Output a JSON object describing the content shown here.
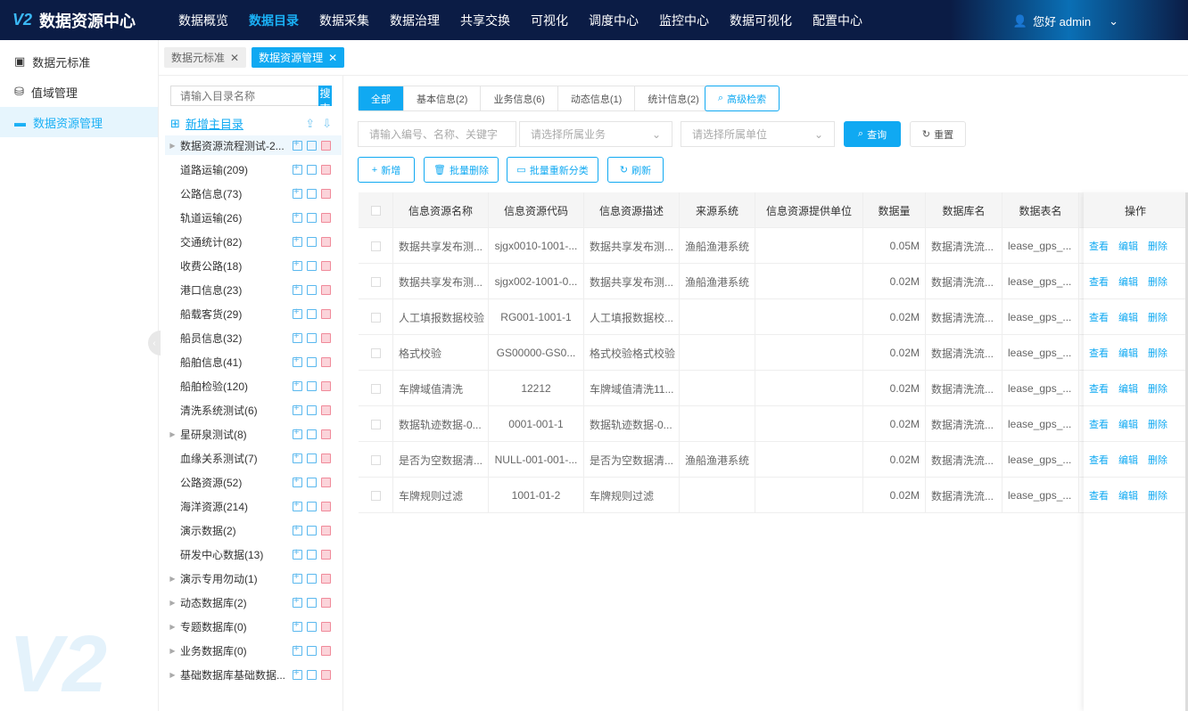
{
  "header": {
    "logo_mark": "V2",
    "title": "数据资源中心",
    "nav": [
      "数据概览",
      "数据目录",
      "数据采集",
      "数据治理",
      "共享交换",
      "可视化",
      "调度中心",
      "监控中心",
      "数据可视化",
      "配置中心"
    ],
    "active_nav": "数据目录",
    "user": "您好 admin"
  },
  "sidebar": {
    "items": [
      "数据元标准",
      "值域管理",
      "数据资源管理"
    ],
    "active": "数据资源管理"
  },
  "tabs": [
    {
      "label": "数据元标准"
    },
    {
      "label": "数据资源管理",
      "active": true
    }
  ],
  "tree": {
    "search_placeholder": "请输入目录名称",
    "search_button": "搜索",
    "add_root": "新增主目录",
    "items": [
      {
        "label": "数据资源流程测试-2...",
        "expand": true
      },
      {
        "label": "道路运输(209)"
      },
      {
        "label": "公路信息(73)"
      },
      {
        "label": "轨道运输(26)"
      },
      {
        "label": "交通统计(82)"
      },
      {
        "label": "收费公路(18)"
      },
      {
        "label": "港口信息(23)"
      },
      {
        "label": "船载客货(29)"
      },
      {
        "label": "船员信息(32)"
      },
      {
        "label": "船舶信息(41)"
      },
      {
        "label": "船舶检验(120)"
      },
      {
        "label": "清洗系统测试(6)"
      },
      {
        "label": "星研泉测试(8)",
        "expand": true
      },
      {
        "label": "血缘关系测试(7)"
      },
      {
        "label": "公路资源(52)"
      },
      {
        "label": "海洋资源(214)"
      },
      {
        "label": "演示数据(2)"
      },
      {
        "label": "研发中心数据(13)"
      },
      {
        "label": "演示专用勿动(1)",
        "expand": true
      },
      {
        "label": "动态数据库(2)",
        "expand": true
      },
      {
        "label": "专题数据库(0)",
        "expand": true
      },
      {
        "label": "业务数据库(0)",
        "expand": true
      },
      {
        "label": "基础数据库基础数据...",
        "expand": true
      }
    ]
  },
  "filters": {
    "segments": [
      "全部",
      "基本信息(2)",
      "业务信息(6)",
      "动态信息(1)",
      "统计信息(2)"
    ],
    "advanced": "高级检索",
    "keyword_placeholder": "请输入编号、名称、关键字",
    "business_placeholder": "请选择所属业务",
    "unit_placeholder": "请选择所属单位",
    "query": "查询",
    "reset": "重置"
  },
  "toolbar": {
    "add": "新增",
    "batch_delete": "批量删除",
    "batch_reclassify": "批量重新分类",
    "refresh": "刷新"
  },
  "table": {
    "columns": [
      "信息资源名称",
      "信息资源代码",
      "信息资源描述",
      "来源系统",
      "信息资源提供单位",
      "数据量",
      "数据库名",
      "数据表名",
      "操作"
    ],
    "actions": [
      "查看",
      "编辑",
      "删除"
    ],
    "rows": [
      [
        "数据共享发布测...",
        "sjgx0010-1001-...",
        "数据共享发布测...",
        "渔船渔港系统",
        "",
        "0.05M",
        "数据清洗流...",
        "lease_gps_..."
      ],
      [
        "数据共享发布测...",
        "sjgx002-1001-0...",
        "数据共享发布测...",
        "渔船渔港系统",
        "",
        "0.02M",
        "数据清洗流...",
        "lease_gps_..."
      ],
      [
        "人工填报数据校验",
        "RG001-1001-1",
        "人工填报数据校...",
        "",
        "",
        "0.02M",
        "数据清洗流...",
        "lease_gps_..."
      ],
      [
        "格式校验",
        "GS00000-GS0...",
        "格式校验格式校验",
        "",
        "",
        "0.02M",
        "数据清洗流...",
        "lease_gps_..."
      ],
      [
        "车牌域值清洗",
        "12212",
        "车牌域值清洗11...",
        "",
        "",
        "0.02M",
        "数据清洗流...",
        "lease_gps_..."
      ],
      [
        "数据轨迹数据-0...",
        "0001-001-1",
        "数据轨迹数据-0...",
        "",
        "",
        "0.02M",
        "数据清洗流...",
        "lease_gps_..."
      ],
      [
        "是否为空数据清...",
        "NULL-001-001-...",
        "是否为空数据清...",
        "渔船渔港系统",
        "",
        "0.02M",
        "数据清洗流...",
        "lease_gps_..."
      ],
      [
        "车牌规则过滤",
        "1001-01-2",
        "车牌规则过滤",
        "",
        "",
        "0.02M",
        "数据清洗流...",
        "lease_gps_..."
      ]
    ]
  },
  "colors": {
    "accent": "#10a9f2",
    "header_bg": "#0b1c45",
    "delete_icon": "#f08a9a"
  }
}
